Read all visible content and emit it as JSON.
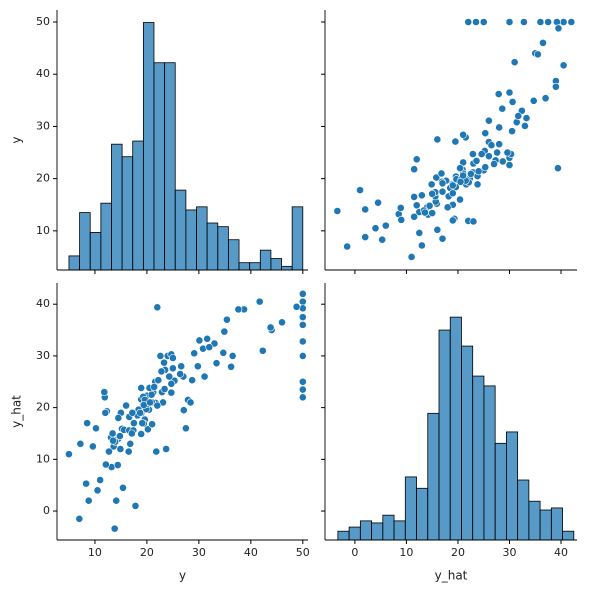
{
  "chart_data": [
    {
      "type": "histogram",
      "ylabel": "y",
      "color": "#1f77b4",
      "bins": [
        5,
        7.05,
        9.09,
        11.14,
        13.18,
        15.23,
        17.27,
        19.32,
        21.36,
        23.41,
        25.45,
        27.5,
        29.55,
        31.59,
        33.64,
        35.68,
        37.73,
        39.77,
        41.82,
        43.86,
        45.91,
        47.95,
        50
      ],
      "values": [
        5.2,
        13.5,
        9.7,
        15.3,
        26.6,
        24.2,
        27.2,
        49.9,
        42.2,
        42.2,
        17.8,
        14.0,
        14.6,
        11.5,
        10.8,
        8.3,
        3.9,
        3.9,
        6.3,
        4.7,
        3.2,
        14.6
      ],
      "xlim": [
        2.7,
        51.0
      ],
      "xticks": [
        10,
        20,
        30,
        40,
        50
      ],
      "ylim": [
        2.5,
        52.3
      ],
      "yticks": [
        10,
        20,
        30,
        40,
        50
      ]
    },
    {
      "type": "scatter",
      "color": "#1f77b4",
      "x": [
        30,
        25,
        30.6,
        28.6,
        27.9,
        25.3,
        23,
        19.5,
        11.5,
        18.9,
        19,
        21.6,
        20.9,
        19.6,
        19.3,
        19.7,
        21,
        17,
        15.8,
        18.5,
        12.5,
        17.7,
        15.9,
        14,
        15.7,
        13.4,
        15.6,
        14.5,
        19.6,
        21,
        11.5,
        18,
        8.5,
        14.2,
        13.6,
        23.8,
        22.3,
        23.2,
        22.9,
        31.4,
        34.7,
        28,
        25.2,
        24.6,
        22.9,
        22.1,
        20.7,
        18.2,
        8.9,
        16.9,
        21.3,
        23.8,
        27.6,
        23.6,
        14.9,
        37,
        30.3,
        33.3,
        28.7,
        21.5,
        19,
        20.4,
        25.3,
        29.6,
        32.4,
        27.3,
        20.5,
        20.4,
        15.6,
        22.5,
        42,
        40.5,
        39.2,
        37.5,
        36,
        32.8,
        30,
        25,
        23.5,
        22,
        39.5,
        36.5,
        35,
        35.5,
        40.5,
        39,
        39,
        30,
        13,
        4,
        11,
        5.3,
        -1.5,
        -3.4,
        2,
        12.5,
        22,
        19.3,
        1,
        19,
        16,
        39.4,
        21.5,
        12,
        11.5,
        21,
        28,
        33,
        30,
        31.7,
        31,
        26,
        30.5,
        26,
        26.5,
        19,
        23,
        16,
        17,
        4.5,
        2,
        6,
        9,
        15,
        13,
        27,
        24,
        21,
        26,
        17,
        15,
        12,
        16.8
      ],
      "values": [
        24,
        21.6,
        34.7,
        33.4,
        36.2,
        28.7,
        22.9,
        27.1,
        16.5,
        18.9,
        15,
        18.9,
        21.7,
        20.4,
        18.2,
        19.9,
        23.1,
        17.5,
        20.2,
        18.2,
        13.6,
        19.6,
        15.2,
        14.5,
        15.6,
        13.9,
        16.6,
        14.8,
        18.4,
        21,
        12.7,
        14.5,
        13.2,
        13.1,
        13.5,
        18.9,
        20,
        21,
        24.7,
        30.8,
        34.9,
        26.6,
        25.3,
        24.7,
        21.2,
        19.3,
        20,
        16.6,
        14.4,
        19.4,
        19.7,
        20.5,
        25,
        23.4,
        18.9,
        35.4,
        24.7,
        31.6,
        23.3,
        19.6,
        18.7,
        16,
        22.2,
        25,
        33,
        23.5,
        19.4,
        22,
        17.4,
        20.9,
        50,
        50,
        50,
        50,
        50,
        50,
        50,
        50,
        50,
        50,
        48.8,
        46,
        44,
        43.8,
        41.7,
        38.7,
        37.6,
        36.5,
        7.2,
        10.5,
        5,
        8.3,
        7,
        13.8,
        8.8,
        9.6,
        11.9,
        12.3,
        17.8,
        17.2,
        27.5,
        22,
        27.9,
        23.7,
        21.8,
        28.4,
        29.8,
        30.1,
        22.6,
        32,
        42.3,
        31.1,
        29.1,
        27,
        26.4,
        12,
        11.8,
        10.2,
        8.5,
        15.4,
        14.1,
        11,
        12.1,
        13.4,
        16.8,
        22.8,
        21.4,
        20.6,
        24.3,
        19.1,
        17.1,
        14.9,
        21
      ],
      "xlim": [
        -5.8,
        43.1
      ],
      "xticks": [
        0,
        10,
        20,
        30,
        40
      ],
      "ylim": [
        2.5,
        52.3
      ],
      "yticks": [
        10,
        20,
        30,
        40,
        50
      ]
    },
    {
      "type": "scatter",
      "xlabel": "y",
      "ylabel": "y_hat",
      "color": "#1f77b4",
      "x": [
        24,
        21.6,
        34.7,
        33.4,
        36.2,
        28.7,
        22.9,
        27.1,
        16.5,
        18.9,
        15,
        18.9,
        21.7,
        20.4,
        18.2,
        19.9,
        23.1,
        17.5,
        20.2,
        18.2,
        13.6,
        19.6,
        15.2,
        14.5,
        15.6,
        13.9,
        16.6,
        14.8,
        18.4,
        21,
        12.7,
        14.5,
        13.2,
        13.1,
        13.5,
        18.9,
        20,
        21,
        24.7,
        30.8,
        34.9,
        26.6,
        25.3,
        24.7,
        21.2,
        19.3,
        20,
        16.6,
        14.4,
        19.4,
        19.7,
        20.5,
        25,
        23.4,
        18.9,
        35.4,
        24.7,
        31.6,
        23.3,
        19.6,
        18.7,
        16,
        22.2,
        25,
        33,
        23.5,
        19.4,
        22,
        17.4,
        20.9,
        50,
        50,
        50,
        50,
        50,
        50,
        50,
        50,
        50,
        50,
        48.8,
        46,
        44,
        43.8,
        41.7,
        38.7,
        37.6,
        36.5,
        7.2,
        10.5,
        5,
        8.3,
        7,
        13.8,
        8.8,
        9.6,
        11.9,
        12.3,
        17.8,
        17.2,
        27.5,
        22,
        27.9,
        23.7,
        21.8,
        28.4,
        29.8,
        30.1,
        22.6,
        32,
        42.3,
        31.1,
        29.1,
        27,
        26.4,
        12,
        11.8,
        10.2,
        8.5,
        15.4,
        14.1,
        11,
        12.1,
        13.4,
        16.8,
        22.8,
        21.4,
        20.6,
        24.3,
        19.1,
        17.1,
        14.9,
        21
      ],
      "values": [
        30,
        25,
        30.6,
        28.6,
        27.9,
        25.3,
        23,
        19.5,
        11.5,
        18.9,
        19,
        21.6,
        20.9,
        19.6,
        19.3,
        19.7,
        21,
        17,
        15.8,
        18.5,
        12.5,
        17.7,
        15.9,
        14,
        15.7,
        13.4,
        15.6,
        14.5,
        19.6,
        21,
        11.5,
        18,
        8.5,
        14.2,
        13.6,
        23.8,
        22.3,
        23.2,
        22.9,
        31.4,
        34.7,
        28,
        25.2,
        24.6,
        22.9,
        22.1,
        20.7,
        18.2,
        8.9,
        16.9,
        21.3,
        23.8,
        27.6,
        23.6,
        14.9,
        37,
        30.3,
        33.3,
        28.7,
        21.5,
        19,
        20.4,
        25.3,
        29.6,
        32.4,
        27.3,
        20.5,
        20.4,
        15.6,
        22.5,
        42,
        40.5,
        39.2,
        37.5,
        36,
        32.8,
        30,
        25,
        23.5,
        22,
        39.5,
        36.5,
        35,
        35.5,
        40.5,
        39,
        39,
        30,
        13,
        4,
        11,
        5.3,
        -1.5,
        -3.4,
        2,
        12.5,
        22,
        19.3,
        1,
        19,
        16,
        39.4,
        21.5,
        12,
        11.5,
        21,
        28,
        33,
        30,
        31.7,
        31,
        26,
        30.5,
        26,
        26.5,
        19,
        23,
        16,
        17,
        4.5,
        2,
        6,
        9,
        15,
        13,
        27,
        24,
        21,
        26,
        17,
        15,
        12,
        16.8
      ],
      "xlim": [
        2.7,
        51.0
      ],
      "xticks": [
        10,
        20,
        30,
        40,
        50
      ],
      "ylim": [
        -5.6,
        44.1
      ],
      "yticks": [
        0,
        10,
        20,
        30,
        40
      ]
    },
    {
      "type": "histogram",
      "xlabel": "y_hat",
      "color": "#1f77b4",
      "bins": [
        -3.3,
        -1.12,
        1.06,
        3.24,
        5.42,
        7.6,
        9.78,
        11.96,
        14.14,
        16.32,
        18.5,
        20.68,
        22.86,
        25.04,
        27.22,
        29.4,
        31.58,
        33.76,
        35.94,
        38.12,
        40.3,
        42.48
      ],
      "values": [
        -3.9,
        -3.1,
        -1.9,
        -2.3,
        -0.8,
        -1.9,
        6.6,
        4.4,
        18.9,
        35.0,
        37.5,
        31.9,
        26.1,
        24.2,
        13.1,
        15.3,
        6.0,
        1.9,
        0.2,
        0.6,
        -3.9
      ],
      "xlim": [
        -5.8,
        43.1
      ],
      "xticks": [
        0,
        10,
        20,
        30,
        40
      ],
      "ylim": [
        -5.6,
        44.1
      ],
      "yticks": [
        0,
        10,
        20,
        30,
        40
      ]
    }
  ]
}
